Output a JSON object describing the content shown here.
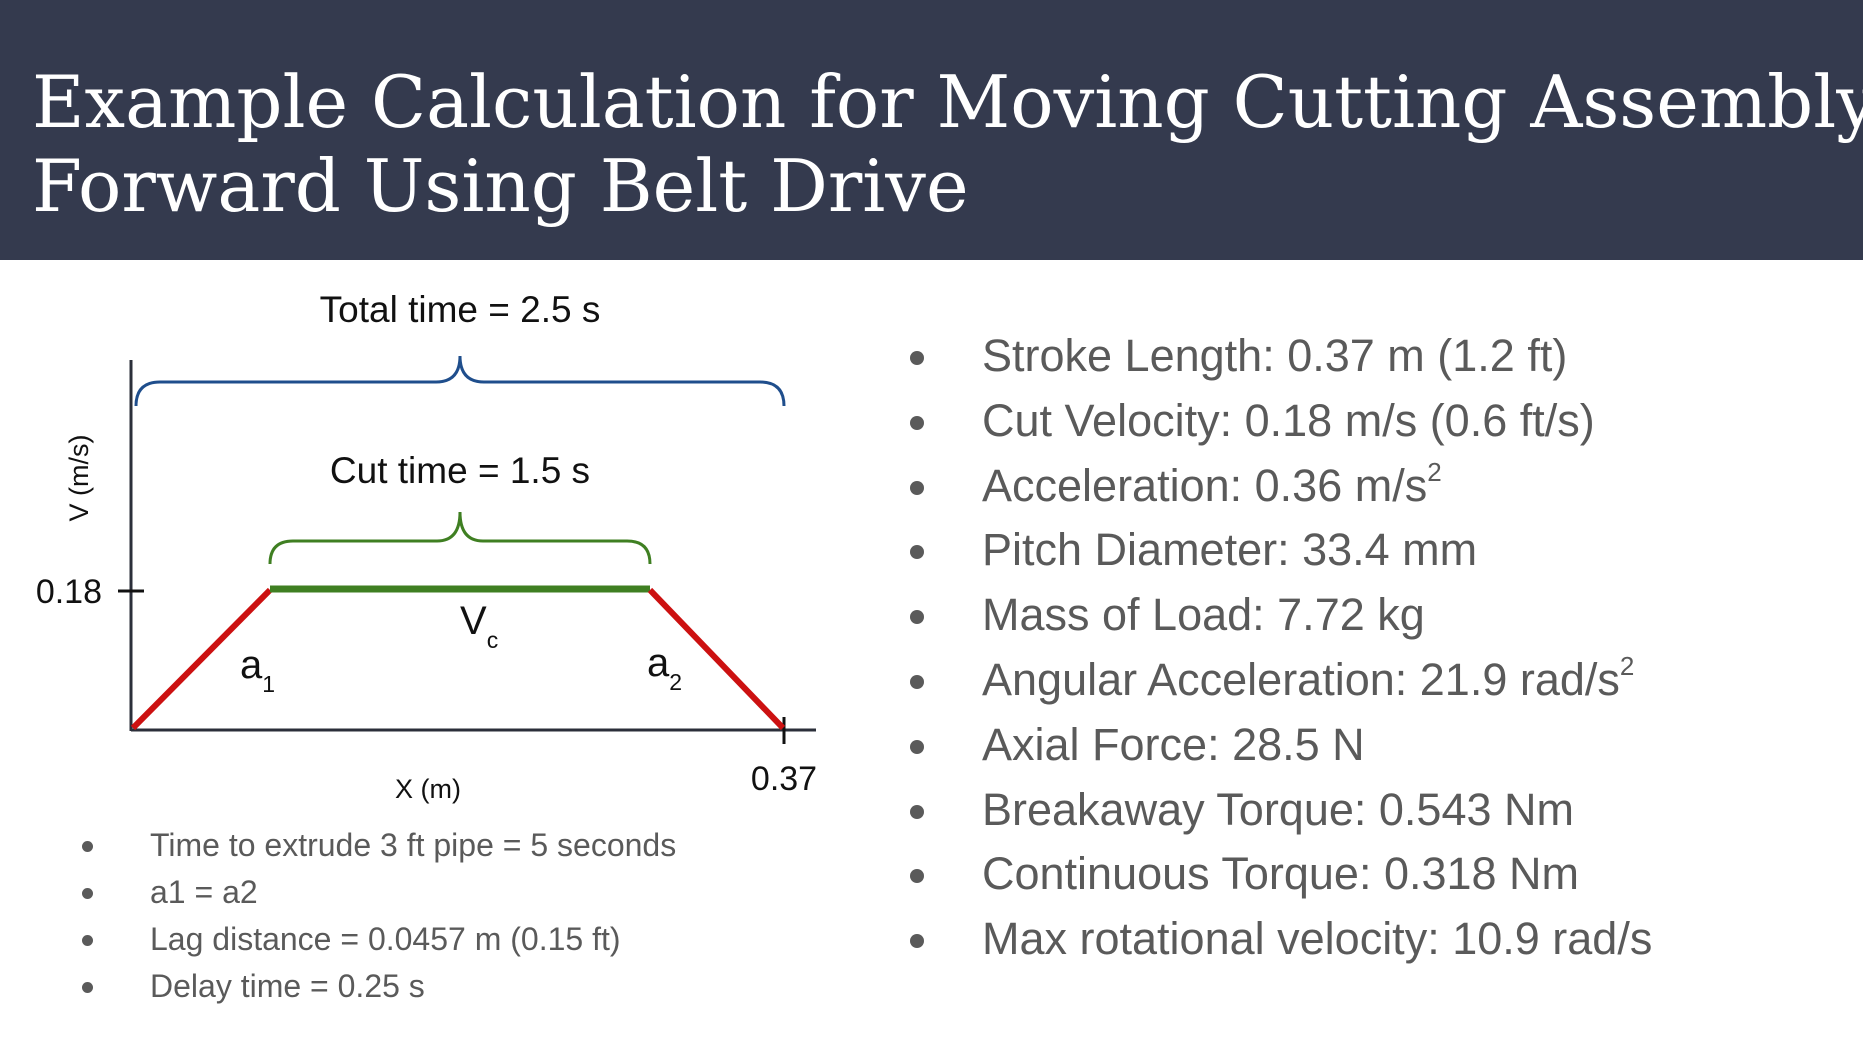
{
  "title": {
    "line1": "Example Calculation for Moving Cutting Assembly",
    "line2": "Forward Using Belt Drive"
  },
  "colors": {
    "header_bg": "#343a4e",
    "total_brace": "#1f4e8c",
    "cut_brace": "#3f7f22",
    "accel_line": "#cc1111",
    "cut_line": "#3f7f22",
    "body_text": "#5a5a5a"
  },
  "diagram": {
    "total_time_label": "Total time = 2.5 s",
    "cut_time_label": "Cut time = 1.5 s",
    "y_axis_label": "V (m/s)",
    "x_axis_label": "X (m)",
    "y_tick_label": "0.18",
    "x_tick_label": "0.37",
    "segments": {
      "a1": {
        "main": "a",
        "sub": "1"
      },
      "vc": {
        "main": "V",
        "sub": "c"
      },
      "a2": {
        "main": "a",
        "sub": "2"
      }
    }
  },
  "notes": [
    "Time to extrude 3 ft pipe = 5 seconds",
    "a1 = a2",
    "Lag distance = 0.0457 m (0.15 ft)",
    "Delay time = 0.25 s"
  ],
  "specs": [
    {
      "text": "Stroke Length: 0.37 m (1.2 ft)",
      "sup": ""
    },
    {
      "text": "Cut Velocity: 0.18 m/s (0.6 ft/s)",
      "sup": ""
    },
    {
      "text": "Acceleration: 0.36 m/s",
      "sup": "2"
    },
    {
      "text": "Pitch Diameter: 33.4 mm",
      "sup": ""
    },
    {
      "text": "Mass of Load: 7.72 kg",
      "sup": ""
    },
    {
      "text": "Angular Acceleration: 21.9 rad/s",
      "sup": "2"
    },
    {
      "text": "Axial Force: 28.5 N",
      "sup": ""
    },
    {
      "text": "Breakaway Torque: 0.543 Nm",
      "sup": ""
    },
    {
      "text": "Continuous Torque: 0.318 Nm",
      "sup": ""
    },
    {
      "text": "Max rotational velocity: 10.9 rad/s",
      "sup": ""
    }
  ]
}
